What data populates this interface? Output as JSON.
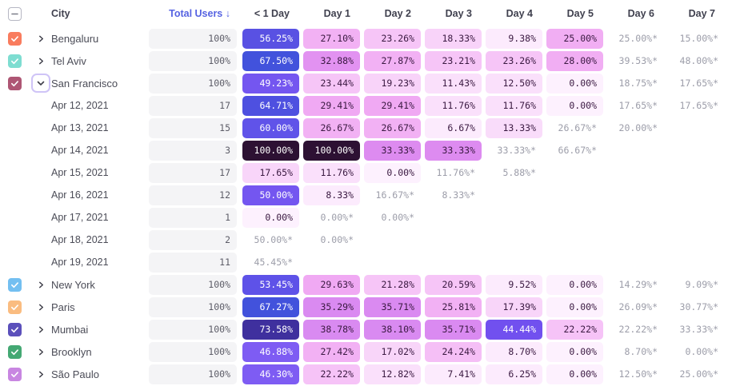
{
  "header": {
    "select_all_state": "indeterminate",
    "city_label": "City",
    "total_users_label": "Total Users",
    "sort_arrow": "↓",
    "day_columns": [
      "< 1 Day",
      "Day 1",
      "Day 2",
      "Day 3",
      "Day 4",
      "Day 5",
      "Day 6",
      "Day 7"
    ]
  },
  "colors": {
    "accent_header": "#5663e2",
    "muted_text": "#9c9da9",
    "total_pill_bg": "#f4f4f6"
  },
  "rows": [
    {
      "kind": "city",
      "label": "Bengaluru",
      "checkbox_color": "#f97c5e",
      "expanded": false,
      "total": "100%",
      "cells": [
        {
          "v": "56.25%",
          "bg": "#5951e3",
          "fg": "#ffffff"
        },
        {
          "v": "27.10%",
          "bg": "#f2b1f4"
        },
        {
          "v": "23.26%",
          "bg": "#f6c5f7"
        },
        {
          "v": "18.33%",
          "bg": "#f8d3f9"
        },
        {
          "v": "9.38%",
          "bg": "#fcebfd"
        },
        {
          "v": "25.00%",
          "bg": "#f1aef3"
        },
        {
          "v": "25.00%*",
          "muted": true
        },
        {
          "v": "15.00%*",
          "muted": true
        }
      ]
    },
    {
      "kind": "city",
      "label": "Tel Aviv",
      "checkbox_color": "#7eddd1",
      "expanded": false,
      "total": "100%",
      "cells": [
        {
          "v": "67.50%",
          "bg": "#4252dc",
          "fg": "#ffffff"
        },
        {
          "v": "32.88%",
          "bg": "#e292f1"
        },
        {
          "v": "27.87%",
          "bg": "#f2b1f4"
        },
        {
          "v": "23.21%",
          "bg": "#f6c5f7"
        },
        {
          "v": "23.26%",
          "bg": "#f6c5f7"
        },
        {
          "v": "28.00%",
          "bg": "#f1aef3"
        },
        {
          "v": "39.53%*",
          "muted": true
        },
        {
          "v": "48.00%*",
          "muted": true
        }
      ]
    },
    {
      "kind": "city",
      "label": "San Francisco",
      "checkbox_color": "#ae5674",
      "expanded": true,
      "total": "100%",
      "cells": [
        {
          "v": "49.23%",
          "bg": "#7456f0",
          "fg": "#ffffff"
        },
        {
          "v": "23.44%",
          "bg": "#f6c5f7"
        },
        {
          "v": "19.23%",
          "bg": "#f8d3f9"
        },
        {
          "v": "11.43%",
          "bg": "#fae0fb"
        },
        {
          "v": "12.50%",
          "bg": "#fae0fb"
        },
        {
          "v": "0.00%",
          "bg": "#fdf1fe"
        },
        {
          "v": "18.75%*",
          "muted": true
        },
        {
          "v": "17.65%*",
          "muted": true
        }
      ]
    },
    {
      "kind": "date",
      "label": "Apr 12, 2021",
      "total": "17",
      "cells": [
        {
          "v": "64.71%",
          "bg": "#4e50e0",
          "fg": "#ffffff"
        },
        {
          "v": "29.41%",
          "bg": "#f0a9f3"
        },
        {
          "v": "29.41%",
          "bg": "#f0a9f3"
        },
        {
          "v": "11.76%",
          "bg": "#fae0fb"
        },
        {
          "v": "11.76%",
          "bg": "#fae0fb"
        },
        {
          "v": "0.00%",
          "bg": "#fdf1fe"
        },
        {
          "v": "17.65%*",
          "muted": true
        },
        {
          "v": "17.65%*",
          "muted": true
        }
      ]
    },
    {
      "kind": "date",
      "label": "Apr 13, 2021",
      "total": "15",
      "cells": [
        {
          "v": "60.00%",
          "bg": "#6053e9",
          "fg": "#ffffff"
        },
        {
          "v": "26.67%",
          "bg": "#f2b1f4"
        },
        {
          "v": "26.67%",
          "bg": "#f2b1f4"
        },
        {
          "v": "6.67%",
          "bg": "#fcebfd"
        },
        {
          "v": "13.33%",
          "bg": "#f9dcfa"
        },
        {
          "v": "26.67%*",
          "muted": true
        },
        {
          "v": "20.00%*",
          "muted": true
        },
        null
      ]
    },
    {
      "kind": "date",
      "label": "Apr 14, 2021",
      "total": "3",
      "cells": [
        {
          "v": "100.00%",
          "bg": "#2d1133",
          "fg": "#ffffff"
        },
        {
          "v": "100.00%",
          "bg": "#2d1133",
          "fg": "#ffffff"
        },
        {
          "v": "33.33%",
          "bg": "#dd8bf0"
        },
        {
          "v": "33.33%",
          "bg": "#dd8bf0"
        },
        {
          "v": "33.33%*",
          "muted": true
        },
        {
          "v": "66.67%*",
          "muted": true
        },
        null,
        null
      ]
    },
    {
      "kind": "date",
      "label": "Apr 15, 2021",
      "total": "17",
      "cells": [
        {
          "v": "17.65%",
          "bg": "#f8d5f9"
        },
        {
          "v": "11.76%",
          "bg": "#fae0fb"
        },
        {
          "v": "0.00%",
          "bg": "#fdf1fe"
        },
        {
          "v": "11.76%*",
          "muted": true
        },
        {
          "v": "5.88%*",
          "muted": true
        },
        null,
        null,
        null
      ]
    },
    {
      "kind": "date",
      "label": "Apr 16, 2021",
      "total": "12",
      "cells": [
        {
          "v": "50.00%",
          "bg": "#7456f0",
          "fg": "#ffffff"
        },
        {
          "v": "8.33%",
          "bg": "#fcebfd"
        },
        {
          "v": "16.67%*",
          "muted": true
        },
        {
          "v": "8.33%*",
          "muted": true
        },
        null,
        null,
        null,
        null
      ]
    },
    {
      "kind": "date",
      "label": "Apr 17, 2021",
      "total": "1",
      "cells": [
        {
          "v": "0.00%",
          "bg": "#fdf1fe"
        },
        {
          "v": "0.00%*",
          "muted": true
        },
        {
          "v": "0.00%*",
          "muted": true
        },
        null,
        null,
        null,
        null,
        null
      ]
    },
    {
      "kind": "date",
      "label": "Apr 18, 2021",
      "total": "2",
      "cells": [
        {
          "v": "50.00%*",
          "muted": true
        },
        {
          "v": "0.00%*",
          "muted": true
        },
        null,
        null,
        null,
        null,
        null,
        null
      ]
    },
    {
      "kind": "date",
      "label": "Apr 19, 2021",
      "total": "11",
      "cells": [
        {
          "v": "45.45%*",
          "muted": true
        },
        null,
        null,
        null,
        null,
        null,
        null,
        null
      ]
    },
    {
      "kind": "city",
      "label": "New York",
      "checkbox_color": "#73bff1",
      "expanded": false,
      "total": "100%",
      "cells": [
        {
          "v": "53.45%",
          "bg": "#5e52e8",
          "fg": "#ffffff"
        },
        {
          "v": "29.63%",
          "bg": "#f0a9f3"
        },
        {
          "v": "21.28%",
          "bg": "#f6c5f7"
        },
        {
          "v": "20.59%",
          "bg": "#f6c5f7"
        },
        {
          "v": "9.52%",
          "bg": "#fcebfd"
        },
        {
          "v": "0.00%",
          "bg": "#fdf1fe"
        },
        {
          "v": "14.29%*",
          "muted": true
        },
        {
          "v": "9.09%*",
          "muted": true
        }
      ]
    },
    {
      "kind": "city",
      "label": "Paris",
      "checkbox_color": "#fabc80",
      "expanded": false,
      "total": "100%",
      "cells": [
        {
          "v": "67.27%",
          "bg": "#4252dc",
          "fg": "#ffffff"
        },
        {
          "v": "35.29%",
          "bg": "#da8af1"
        },
        {
          "v": "35.71%",
          "bg": "#da8af1"
        },
        {
          "v": "25.81%",
          "bg": "#f2b1f4"
        },
        {
          "v": "17.39%",
          "bg": "#f8d5f9"
        },
        {
          "v": "0.00%",
          "bg": "#fdf1fe"
        },
        {
          "v": "26.09%*",
          "muted": true
        },
        {
          "v": "30.77%*",
          "muted": true
        }
      ]
    },
    {
      "kind": "city",
      "label": "Mumbai",
      "checkbox_color": "#5b50bb",
      "expanded": false,
      "total": "100%",
      "cells": [
        {
          "v": "73.58%",
          "bg": "#3f309e",
          "fg": "#ffffff"
        },
        {
          "v": "38.78%",
          "bg": "#d98af1"
        },
        {
          "v": "38.10%",
          "bg": "#d98af1"
        },
        {
          "v": "35.71%",
          "bg": "#da8af1"
        },
        {
          "v": "44.44%",
          "bg": "#7150ef",
          "fg": "#ffffff"
        },
        {
          "v": "22.22%",
          "bg": "#f6c3f7"
        },
        {
          "v": "22.22%*",
          "muted": true
        },
        {
          "v": "33.33%*",
          "muted": true
        }
      ]
    },
    {
      "kind": "city",
      "label": "Brooklyn",
      "checkbox_color": "#44a873",
      "expanded": false,
      "total": "100%",
      "cells": [
        {
          "v": "46.88%",
          "bg": "#7e5cf3",
          "fg": "#ffffff"
        },
        {
          "v": "27.42%",
          "bg": "#f2b1f4"
        },
        {
          "v": "17.02%",
          "bg": "#f8d5f9"
        },
        {
          "v": "24.24%",
          "bg": "#f5bff6"
        },
        {
          "v": "8.70%",
          "bg": "#fcebfd"
        },
        {
          "v": "0.00%",
          "bg": "#fdf1fe"
        },
        {
          "v": "8.70%*",
          "muted": true
        },
        {
          "v": "0.00%*",
          "muted": true
        }
      ]
    },
    {
      "kind": "city",
      "label": "São Paulo",
      "checkbox_color": "#c886e1",
      "expanded": false,
      "total": "100%",
      "cells": [
        {
          "v": "46.30%",
          "bg": "#7e5cf3",
          "fg": "#ffffff"
        },
        {
          "v": "22.22%",
          "bg": "#f6c3f7"
        },
        {
          "v": "12.82%",
          "bg": "#fae0fb"
        },
        {
          "v": "7.41%",
          "bg": "#fcebfd"
        },
        {
          "v": "6.25%",
          "bg": "#fcebfd"
        },
        {
          "v": "0.00%",
          "bg": "#fdf1fe"
        },
        {
          "v": "12.50%*",
          "muted": true
        },
        {
          "v": "25.00%*",
          "muted": true
        }
      ]
    }
  ]
}
